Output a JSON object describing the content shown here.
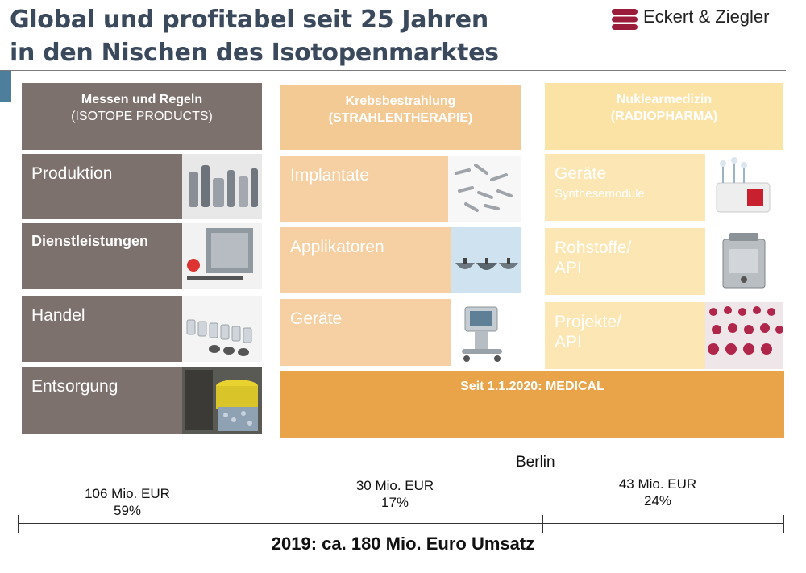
{
  "title": {
    "line1": "Global und profitabel seit 25 Jahren",
    "line2": "in den Nischen des Isotopenmarktes"
  },
  "logo": {
    "text": "Eckert & Ziegler",
    "color": "#9b1c3a"
  },
  "columns": [
    {
      "header_line1": "Messen und Regeln",
      "header_line2": "(ISOTOPE PRODUCTS)",
      "items": [
        {
          "label": "Produktion",
          "image": "metal-parts-photo"
        },
        {
          "label": "Dienstleistungen",
          "image": "radiation-source-photo"
        },
        {
          "label": "Handel",
          "image": "glass-vials-photo"
        },
        {
          "label": "Entsorgung",
          "image": "waste-containers-photo"
        }
      ]
    },
    {
      "header_line1": "Krebsbestrahlung",
      "header_line2": "(STRAHLENTHERAPIE)",
      "items": [
        {
          "label": "Implantate",
          "image": "seed-implants-photo"
        },
        {
          "label": "Applikatoren",
          "image": "applicators-photo"
        },
        {
          "label": "Geräte",
          "image": "afterloader-device-photo"
        }
      ]
    },
    {
      "header_line1": "Nuklearmedizin",
      "header_line2": "(RADIOPHARMA)",
      "items": [
        {
          "label": "Geräte",
          "sublabel": "Synthesemodule",
          "image": "synthesis-module-photo"
        },
        {
          "label_line1": "Rohstoffe/",
          "label_line2": "API",
          "image": "generator-device-photo"
        },
        {
          "label_line1": "Projekte/",
          "label_line2": "API",
          "image": "vials-red-photo"
        }
      ]
    }
  ],
  "medical_banner": "Seit 1.1.2020: MEDICAL",
  "berlin": "Berlin",
  "revenue": [
    {
      "amount": "106 Mio. EUR",
      "share": "59%"
    },
    {
      "amount": "30 Mio. EUR",
      "share": "17%"
    },
    {
      "amount": "43 Mio. EUR",
      "share": "24%"
    }
  ],
  "footer": "2019: ca. 180 Mio. Euro Umsatz",
  "colors": {
    "title": "#3a4a5c",
    "gray": "#7d716d",
    "peach": "#f6d0a3",
    "yellow": "#fce6b3",
    "orange": "#e9a449"
  }
}
